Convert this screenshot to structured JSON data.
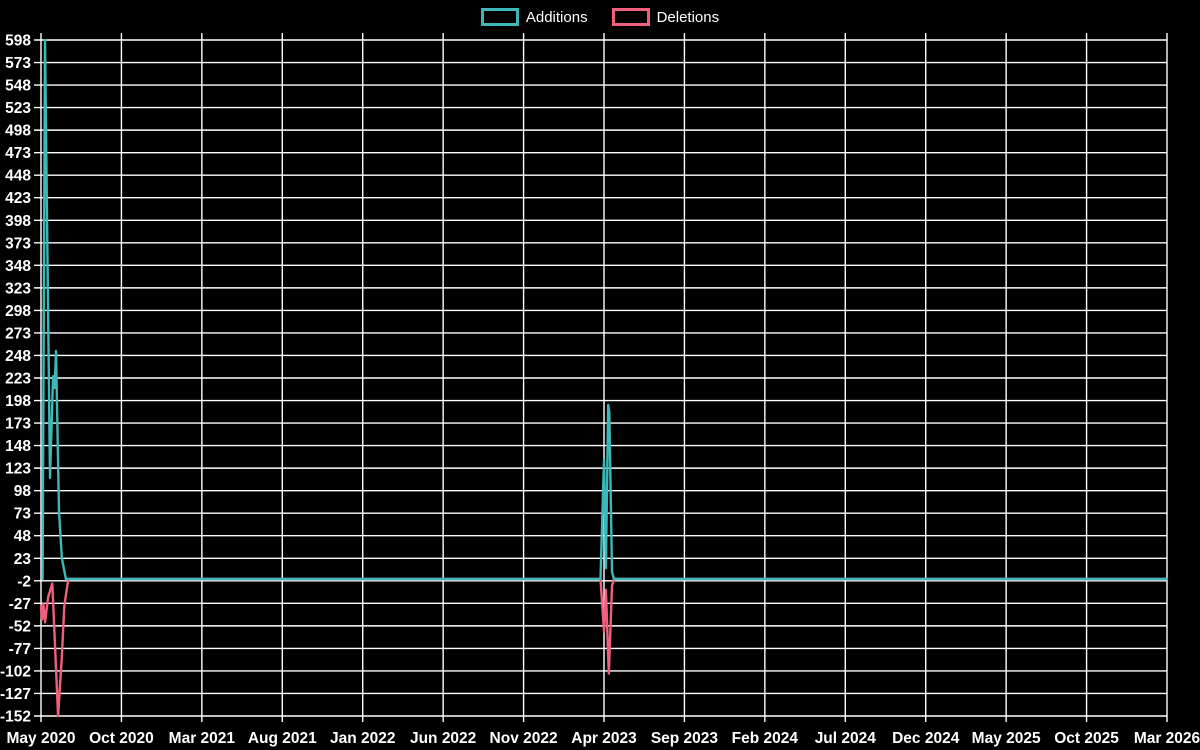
{
  "legend": {
    "items": [
      {
        "label": "Additions",
        "color": "#3cb8b8"
      },
      {
        "label": "Deletions",
        "color": "#f0607d"
      }
    ]
  },
  "chart_data": {
    "type": "line",
    "title": "",
    "background_color": "#000000",
    "grid": true,
    "grid_color": "#ffffff",
    "text_color": "#ffffff",
    "legend_position": "top-center",
    "x_axis": {
      "label": "",
      "unit": "month",
      "range_months": [
        0,
        70
      ],
      "tick_labels": [
        "May 2020",
        "Oct 2020",
        "Mar 2021",
        "Aug 2021",
        "Jan 2022",
        "Jun 2022",
        "Nov 2022",
        "Apr 2023",
        "Sep 2023",
        "Feb 2024",
        "Jul 2024",
        "Dec 2024",
        "May 2025",
        "Oct 2025",
        "Mar 2026"
      ]
    },
    "y_axis": {
      "label": "",
      "min": -152,
      "max": 598,
      "tick_step": 25,
      "ticks": [
        598,
        573,
        548,
        523,
        498,
        473,
        448,
        423,
        398,
        373,
        348,
        323,
        298,
        273,
        248,
        223,
        198,
        173,
        148,
        123,
        98,
        73,
        48,
        23,
        -2,
        -27,
        -52,
        -77,
        -102,
        -127,
        -152
      ]
    },
    "series": [
      {
        "name": "Additions",
        "color": "#3cb8b8",
        "points": [
          [
            0.1,
            0
          ],
          [
            0.25,
            598
          ],
          [
            0.56,
            112
          ],
          [
            0.75,
            225
          ],
          [
            0.85,
            212
          ],
          [
            0.93,
            253
          ],
          [
            1.12,
            75
          ],
          [
            1.3,
            23
          ],
          [
            1.55,
            0
          ],
          [
            34.78,
            0
          ],
          [
            35.0,
            132
          ],
          [
            35.12,
            12
          ],
          [
            35.26,
            193
          ],
          [
            35.33,
            185
          ],
          [
            35.5,
            8
          ],
          [
            35.62,
            0
          ],
          [
            70,
            0
          ]
        ]
      },
      {
        "name": "Deletions",
        "color": "#f0607d",
        "points": [
          [
            0.0,
            -30
          ],
          [
            0.06,
            -45
          ],
          [
            0.15,
            -28
          ],
          [
            0.25,
            -48
          ],
          [
            0.45,
            -20
          ],
          [
            0.7,
            -5
          ],
          [
            1.06,
            -152
          ],
          [
            1.3,
            -85
          ],
          [
            1.45,
            -30
          ],
          [
            1.7,
            0
          ],
          [
            34.78,
            0
          ],
          [
            35.0,
            -58
          ],
          [
            35.12,
            -12
          ],
          [
            35.3,
            -105
          ],
          [
            35.5,
            -8
          ],
          [
            35.62,
            0
          ],
          [
            70,
            0
          ]
        ]
      }
    ]
  }
}
